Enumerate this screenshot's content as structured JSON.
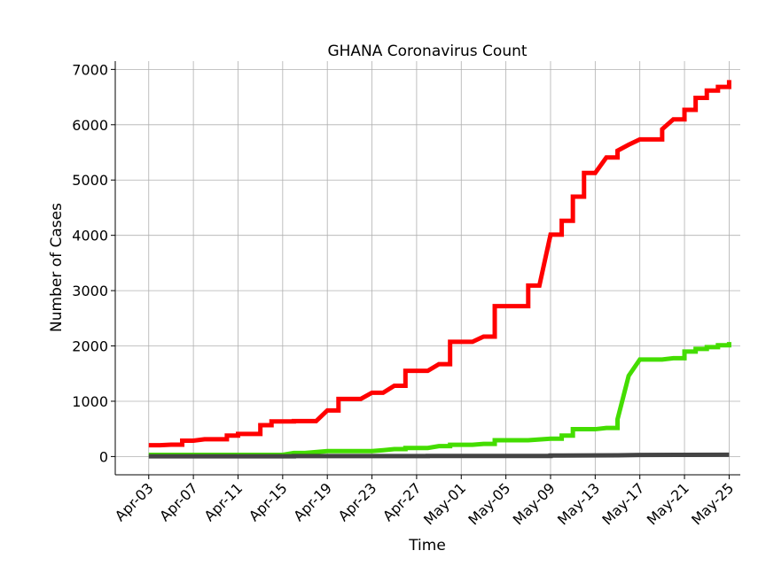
{
  "chart_data": {
    "type": "line",
    "title": "GHANA Coronavirus Count",
    "xlabel": "Time",
    "ylabel": "Number of Cases",
    "x_ticks": [
      "Apr-03",
      "Apr-07",
      "Apr-11",
      "Apr-15",
      "Apr-19",
      "Apr-23",
      "Apr-27",
      "May-01",
      "May-05",
      "May-09",
      "May-13",
      "May-17",
      "May-21",
      "May-25"
    ],
    "y_ticks": [
      "0",
      "1000",
      "2000",
      "3000",
      "4000",
      "5000",
      "6000",
      "7000"
    ],
    "xlim": [
      "2020-03-31",
      "2020-05-26"
    ],
    "ylim": [
      -330,
      7150
    ],
    "grid": true,
    "series": [
      {
        "color": "#ff0000",
        "points": [
          [
            "2020-04-03",
            205
          ],
          [
            "2020-04-04",
            205
          ],
          [
            "2020-04-05",
            214
          ],
          [
            "2020-04-06",
            214
          ],
          [
            "2020-04-06",
            287
          ],
          [
            "2020-04-07",
            287
          ],
          [
            "2020-04-08",
            313
          ],
          [
            "2020-04-10",
            313
          ],
          [
            "2020-04-10",
            378
          ],
          [
            "2020-04-11",
            378
          ],
          [
            "2020-04-11",
            408
          ],
          [
            "2020-04-13",
            408
          ],
          [
            "2020-04-13",
            566
          ],
          [
            "2020-04-14",
            566
          ],
          [
            "2020-04-14",
            636
          ],
          [
            "2020-04-16",
            636
          ],
          [
            "2020-04-16",
            641
          ],
          [
            "2020-04-18",
            641
          ],
          [
            "2020-04-19",
            834
          ],
          [
            "2020-04-20",
            834
          ],
          [
            "2020-04-20",
            1042
          ],
          [
            "2020-04-22",
            1042
          ],
          [
            "2020-04-23",
            1154
          ],
          [
            "2020-04-24",
            1154
          ],
          [
            "2020-04-25",
            1279
          ],
          [
            "2020-04-26",
            1279
          ],
          [
            "2020-04-26",
            1550
          ],
          [
            "2020-04-28",
            1550
          ],
          [
            "2020-04-29",
            1671
          ],
          [
            "2020-04-30",
            1671
          ],
          [
            "2020-04-30",
            2074
          ],
          [
            "2020-05-02",
            2074
          ],
          [
            "2020-05-03",
            2169
          ],
          [
            "2020-05-04",
            2169
          ],
          [
            "2020-05-04",
            2719
          ],
          [
            "2020-05-07",
            2719
          ],
          [
            "2020-05-07",
            3091
          ],
          [
            "2020-05-08",
            3091
          ],
          [
            "2020-05-09",
            4012
          ],
          [
            "2020-05-10",
            4012
          ],
          [
            "2020-05-10",
            4263
          ],
          [
            "2020-05-11",
            4263
          ],
          [
            "2020-05-11",
            4700
          ],
          [
            "2020-05-12",
            4700
          ],
          [
            "2020-05-12",
            5127
          ],
          [
            "2020-05-13",
            5127
          ],
          [
            "2020-05-14",
            5408
          ],
          [
            "2020-05-15",
            5408
          ],
          [
            "2020-05-15",
            5530
          ],
          [
            "2020-05-16",
            5638
          ],
          [
            "2020-05-17",
            5735
          ],
          [
            "2020-05-19",
            5735
          ],
          [
            "2020-05-19",
            5918
          ],
          [
            "2020-05-20",
            6096
          ],
          [
            "2020-05-21",
            6096
          ],
          [
            "2020-05-21",
            6269
          ],
          [
            "2020-05-22",
            6269
          ],
          [
            "2020-05-22",
            6486
          ],
          [
            "2020-05-23",
            6486
          ],
          [
            "2020-05-23",
            6617
          ],
          [
            "2020-05-24",
            6617
          ],
          [
            "2020-05-24",
            6683
          ],
          [
            "2020-05-25",
            6683
          ],
          [
            "2020-05-25",
            6808
          ]
        ]
      },
      {
        "color": "#44dd00",
        "points": [
          [
            "2020-04-03",
            31
          ],
          [
            "2020-04-15",
            31
          ],
          [
            "2020-04-16",
            65
          ],
          [
            "2020-04-17",
            65
          ],
          [
            "2020-04-19",
            99
          ],
          [
            "2020-04-23",
            99
          ],
          [
            "2020-04-24",
            115
          ],
          [
            "2020-04-25",
            134
          ],
          [
            "2020-04-26",
            134
          ],
          [
            "2020-04-26",
            155
          ],
          [
            "2020-04-28",
            155
          ],
          [
            "2020-04-29",
            188
          ],
          [
            "2020-04-30",
            188
          ],
          [
            "2020-04-30",
            212
          ],
          [
            "2020-05-02",
            212
          ],
          [
            "2020-05-03",
            229
          ],
          [
            "2020-05-04",
            229
          ],
          [
            "2020-05-04",
            294
          ],
          [
            "2020-05-07",
            294
          ],
          [
            "2020-05-09",
            323
          ],
          [
            "2020-05-10",
            323
          ],
          [
            "2020-05-10",
            378
          ],
          [
            "2020-05-11",
            378
          ],
          [
            "2020-05-11",
            494
          ],
          [
            "2020-05-13",
            494
          ],
          [
            "2020-05-14",
            516
          ],
          [
            "2020-05-15",
            516
          ],
          [
            "2020-05-15",
            674
          ],
          [
            "2020-05-16",
            1460
          ],
          [
            "2020-05-17",
            1754
          ],
          [
            "2020-05-19",
            1754
          ],
          [
            "2020-05-20",
            1778
          ],
          [
            "2020-05-21",
            1778
          ],
          [
            "2020-05-21",
            1898
          ],
          [
            "2020-05-22",
            1898
          ],
          [
            "2020-05-22",
            1947
          ],
          [
            "2020-05-23",
            1947
          ],
          [
            "2020-05-23",
            1978
          ],
          [
            "2020-05-24",
            1978
          ],
          [
            "2020-05-24",
            2012
          ],
          [
            "2020-05-25",
            2012
          ],
          [
            "2020-05-25",
            2070
          ]
        ]
      },
      {
        "color": "#444444",
        "points": [
          [
            "2020-04-03",
            5
          ],
          [
            "2020-04-16",
            5
          ],
          [
            "2020-04-16",
            8
          ],
          [
            "2020-04-28",
            8
          ],
          [
            "2020-04-28",
            11
          ],
          [
            "2020-05-09",
            11
          ],
          [
            "2020-05-09",
            18
          ],
          [
            "2020-05-15",
            22
          ],
          [
            "2020-05-17",
            29
          ],
          [
            "2020-05-21",
            31
          ],
          [
            "2020-05-25",
            32
          ]
        ]
      }
    ]
  }
}
